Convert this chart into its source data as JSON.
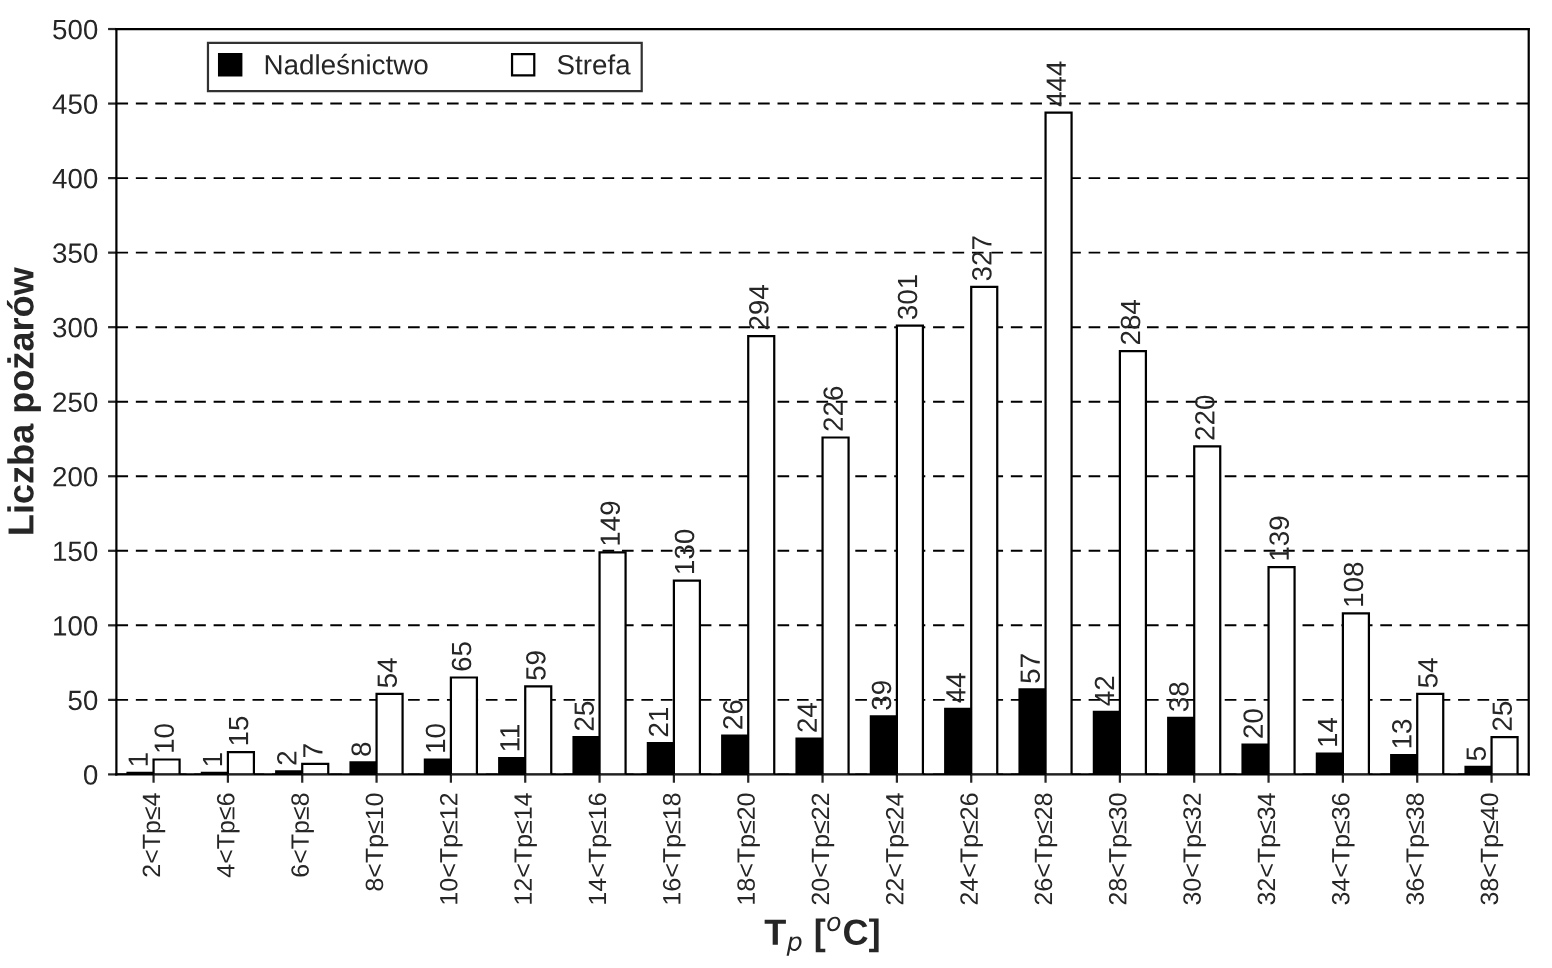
{
  "chart_data": {
    "type": "bar",
    "xlabel": "T$_{p}$ [$^{o}$C]",
    "ylabel": "Liczba pożarów",
    "categories": [
      "2<Tp≤4",
      "4<Tp≤6",
      "6<Tp≤8",
      "8<Tp≤10",
      "10<Tp≤12",
      "12<Tp≤14",
      "14<Tp≤16",
      "16<Tp≤18",
      "18<Tp≤20",
      "20<Tp≤22",
      "22<Tp≤24",
      "24<Tp≤26",
      "26<Tp≤28",
      "28<Tp≤30",
      "30<Tp≤32",
      "32<Tp≤34",
      "34<Tp≤36",
      "36<Tp≤38",
      "38<Tp≤40"
    ],
    "series": [
      {
        "name": "Nadleśnictwo",
        "color": "#000000",
        "values": [
          1,
          1,
          2,
          8,
          10,
          11,
          25,
          21,
          26,
          24,
          39,
          44,
          57,
          42,
          38,
          20,
          14,
          13,
          5
        ]
      },
      {
        "name": "Strefa",
        "color": "#ffffff",
        "values": [
          10,
          15,
          7,
          54,
          65,
          59,
          149,
          130,
          294,
          226,
          301,
          327,
          444,
          284,
          220,
          139,
          108,
          54,
          25
        ]
      }
    ],
    "ylim": [
      0,
      500
    ],
    "yticks": [
      0,
      50,
      100,
      150,
      200,
      250,
      300,
      350,
      400,
      450,
      500
    ],
    "grid": "y",
    "legend": "top left",
    "data_labels": true
  }
}
